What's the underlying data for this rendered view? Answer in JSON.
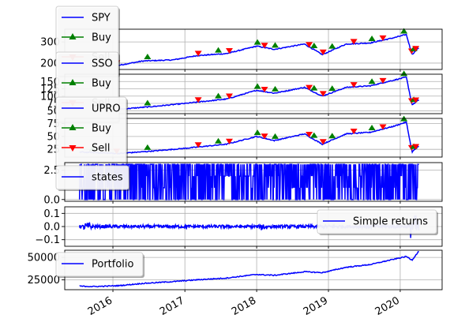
{
  "chart_data": [
    {
      "type": "line",
      "title": "",
      "xlabel": "",
      "ylabel": "",
      "ylim": [
        170,
        360
      ],
      "yticks": [
        200,
        300
      ],
      "grid": true,
      "legend": "upper-left",
      "series": [
        {
          "name": "SPY",
          "color": "#0000ff",
          "marker": "none",
          "x": [
            "2015-07",
            "2015-10",
            "2016-02",
            "2016-06",
            "2016-11",
            "2017-03",
            "2017-08",
            "2018-01",
            "2018-04",
            "2018-09",
            "2018-12",
            "2019-04",
            "2019-08",
            "2019-12",
            "2020-02",
            "2020-03",
            "2020-04"
          ],
          "y": [
            210,
            200,
            190,
            210,
            215,
            235,
            245,
            280,
            265,
            290,
            240,
            290,
            295,
            320,
            335,
            240,
            270
          ]
        },
        {
          "name": "Buy",
          "color": "#008000",
          "marker": "triangle-up",
          "values": []
        },
        {
          "name": "Sell",
          "color": "#ff0000",
          "marker": "triangle-down",
          "values": []
        }
      ]
    },
    {
      "type": "line",
      "title": "",
      "xlabel": "",
      "ylabel": "",
      "ylim": [
        40,
        175
      ],
      "yticks": [
        50,
        75,
        100,
        125,
        150
      ],
      "grid": true,
      "legend": "upper-left",
      "series": [
        {
          "name": "SSO",
          "color": "#0000ff",
          "marker": "none",
          "x": [
            "2015-07",
            "2016-02",
            "2016-08",
            "2017-01",
            "2017-08",
            "2018-01",
            "2018-04",
            "2018-09",
            "2018-12",
            "2019-04",
            "2019-08",
            "2019-12",
            "2020-02",
            "2020-03",
            "2020-04"
          ],
          "y": [
            60,
            55,
            65,
            75,
            90,
            120,
            110,
            130,
            100,
            130,
            135,
            155,
            165,
            70,
            85
          ]
        },
        {
          "name": "Buy",
          "color": "#008000",
          "marker": "triangle-up",
          "values": []
        },
        {
          "name": "Sell",
          "color": "#ff0000",
          "marker": "triangle-down",
          "values": []
        }
      ]
    },
    {
      "type": "line",
      "title": "",
      "xlabel": "",
      "ylabel": "",
      "ylim": [
        10,
        85
      ],
      "yticks": [
        25,
        50,
        75
      ],
      "grid": true,
      "legend": "upper-left",
      "series": [
        {
          "name": "UPRO",
          "color": "#0000ff",
          "marker": "none",
          "x": [
            "2015-07",
            "2016-02",
            "2016-08",
            "2017-01",
            "2017-08",
            "2018-01",
            "2018-04",
            "2018-09",
            "2018-12",
            "2019-04",
            "2019-08",
            "2019-12",
            "2020-02",
            "2020-03",
            "2020-04"
          ],
          "y": [
            20,
            17,
            22,
            27,
            35,
            50,
            42,
            55,
            35,
            55,
            58,
            70,
            78,
            20,
            30
          ]
        },
        {
          "name": "Buy",
          "color": "#008000",
          "marker": "triangle-up",
          "values": []
        },
        {
          "name": "Sell",
          "color": "#ff0000",
          "marker": "triangle-down",
          "values": []
        }
      ]
    },
    {
      "type": "line",
      "title": "",
      "xlabel": "",
      "ylabel": "",
      "ylim": [
        -0.15,
        3.15
      ],
      "yticks": [
        0.0,
        2.5
      ],
      "grid": true,
      "legend": "upper-left",
      "series": [
        {
          "name": "states",
          "color": "#0000ff",
          "values_range": [
            0,
            3
          ]
        }
      ]
    },
    {
      "type": "line",
      "title": "",
      "xlabel": "",
      "ylabel": "",
      "ylim": [
        -0.15,
        0.15
      ],
      "yticks": [
        -0.1,
        0.0,
        0.1
      ],
      "grid": true,
      "legend": "right",
      "series": [
        {
          "name": "Simple returns",
          "color": "#0000ff",
          "values_range": [
            -0.12,
            0.1
          ]
        }
      ]
    },
    {
      "type": "line",
      "title": "",
      "xlabel": "",
      "ylabel": "",
      "ylim": [
        14000,
        58000
      ],
      "yticks": [
        25000,
        50000
      ],
      "grid": true,
      "legend": "upper-left",
      "series": [
        {
          "name": "Portfolio",
          "color": "#0000ff",
          "x": [
            "2015-07",
            "2015-10",
            "2016-02",
            "2016-06",
            "2016-11",
            "2017-03",
            "2017-08",
            "2018-01",
            "2018-04",
            "2018-09",
            "2018-12",
            "2019-04",
            "2019-08",
            "2019-12",
            "2020-02",
            "2020-03",
            "2020-04"
          ],
          "y": [
            18000,
            17500,
            18500,
            21000,
            23000,
            25000,
            27000,
            31000,
            30000,
            34000,
            33000,
            39000,
            42000,
            48000,
            51000,
            47000,
            56000
          ]
        }
      ]
    }
  ],
  "x_axis": {
    "range": [
      "2015-05-01",
      "2020-08-01"
    ],
    "ticks": [
      "2016-01-01",
      "2017-01-01",
      "2018-01-01",
      "2019-01-01",
      "2020-01-01"
    ],
    "labels": [
      "2016",
      "2017",
      "2018",
      "2019",
      "2020"
    ]
  }
}
